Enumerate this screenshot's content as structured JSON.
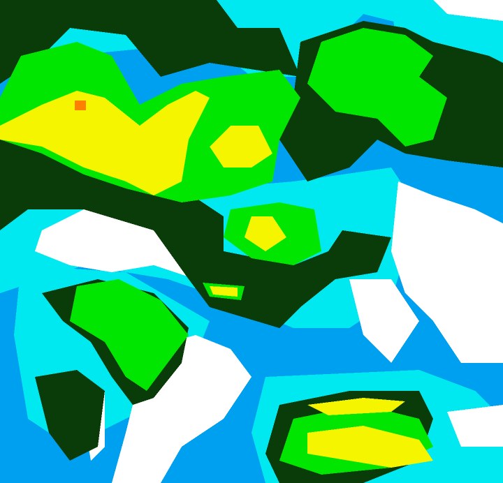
{
  "map": {
    "type": "precipitation-intensity-raster",
    "palette": {
      "clear": "#ffffff",
      "level_1": "#00a0f0",
      "level_2": "#00e8f0",
      "level_3": "#0a3c0a",
      "level_4": "#00e600",
      "level_5": "#f5f500",
      "level_6": "#ff8000"
    }
  }
}
